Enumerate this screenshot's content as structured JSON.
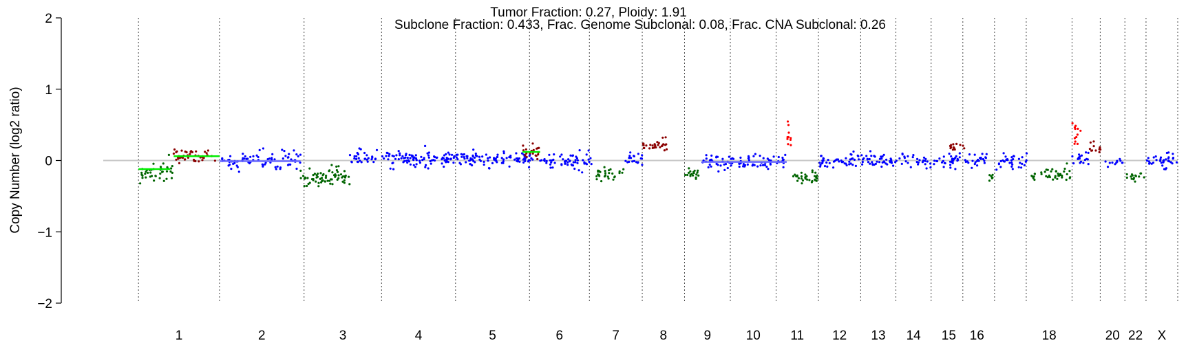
{
  "chart_data": {
    "type": "scatter",
    "title": "Tumor Fraction: 0.27, Ploidy: 1.91",
    "subtitle": "Subclone Fraction: 0.433, Frac. Genome Subclonal: 0.08, Frac. CNA Subclonal: 0.26",
    "xlabel": "",
    "ylabel": "Copy Number (log2 ratio)",
    "ylim": [
      -2,
      2
    ],
    "yticks": [
      "2",
      "1",
      "0",
      "−1",
      "−2"
    ],
    "xlim": [
      0,
      30.5
    ],
    "reference_line": 0,
    "grid": "dotted vertical chromosome boundaries",
    "colors": {
      "neutral": "#0000ff",
      "loss": "#006400",
      "gain": "#8b0000",
      "amplification": "#ff0000",
      "segment_loss": "#00ee00",
      "segment_neutral": "#6b6bff",
      "reference": "#c8c8c8"
    },
    "chromosome_boundaries": [
      1.0,
      3.3,
      5.7,
      7.9,
      10.0,
      12.1,
      13.8,
      15.3,
      16.5,
      17.8,
      19.1,
      20.3,
      21.5,
      22.5,
      23.5,
      24.4,
      25.3,
      26.2,
      27.5,
      28.3,
      29.0,
      29.6,
      30.5
    ],
    "chromosome_labels": [
      {
        "label": "1",
        "x": 2.15
      },
      {
        "label": "2",
        "x": 4.5
      },
      {
        "label": "3",
        "x": 6.8
      },
      {
        "label": "4",
        "x": 8.95
      },
      {
        "label": "5",
        "x": 11.05
      },
      {
        "label": "6",
        "x": 12.95
      },
      {
        "label": "7",
        "x": 14.55
      },
      {
        "label": "8",
        "x": 15.9
      },
      {
        "label": "9",
        "x": 17.15
      },
      {
        "label": "10",
        "x": 18.45
      },
      {
        "label": "11",
        "x": 19.7
      },
      {
        "label": "12",
        "x": 20.9
      },
      {
        "label": "13",
        "x": 22.0
      },
      {
        "label": "14",
        "x": 23.0
      },
      {
        "label": "15",
        "x": 24.0
      },
      {
        "label": "16",
        "x": 24.8
      },
      {
        "label": "18",
        "x": 26.85
      },
      {
        "label": "20",
        "x": 28.65
      },
      {
        "label": "22",
        "x": 29.3
      },
      {
        "label": "X",
        "x": 30.05
      }
    ],
    "series": [
      {
        "category": "loss",
        "segments": [
          {
            "x": [
              1.0,
              2.0
            ],
            "mean": -0.16,
            "sd": 0.08,
            "n": 40
          },
          {
            "x": [
              5.6,
              6.3
            ],
            "mean": -0.26,
            "sd": 0.06,
            "n": 35
          },
          {
            "x": [
              6.3,
              7.0
            ],
            "mean": -0.22,
            "sd": 0.06,
            "n": 35
          },
          {
            "x": [
              14.0,
              14.8
            ],
            "mean": -0.2,
            "sd": 0.05,
            "n": 30
          },
          {
            "x": [
              16.5,
              16.95
            ],
            "mean": -0.2,
            "sd": 0.05,
            "n": 18
          },
          {
            "x": [
              19.55,
              20.3
            ],
            "mean": -0.23,
            "sd": 0.05,
            "n": 32
          },
          {
            "x": [
              25.15,
              25.3
            ],
            "mean": -0.23,
            "sd": 0.04,
            "n": 6
          },
          {
            "x": [
              26.3,
              27.45
            ],
            "mean": -0.2,
            "sd": 0.06,
            "n": 40
          },
          {
            "x": [
              29.02,
              29.55
            ],
            "mean": -0.22,
            "sd": 0.03,
            "n": 15
          }
        ]
      },
      {
        "category": "neutral",
        "segments": [
          {
            "x": [
              3.3,
              5.6
            ],
            "mean": 0.0,
            "sd": 0.06,
            "n": 80
          },
          {
            "x": [
              7.0,
              12.3
            ],
            "mean": 0.02,
            "sd": 0.055,
            "n": 220
          },
          {
            "x": [
              12.4,
              13.95
            ],
            "mean": -0.02,
            "sd": 0.055,
            "n": 60
          },
          {
            "x": [
              14.8,
              15.3
            ],
            "mean": 0.0,
            "sd": 0.05,
            "n": 20
          },
          {
            "x": [
              17.0,
              19.4
            ],
            "mean": -0.02,
            "sd": 0.05,
            "n": 90
          },
          {
            "x": [
              20.3,
              24.35
            ],
            "mean": -0.01,
            "sd": 0.05,
            "n": 150
          },
          {
            "x": [
              24.45,
              25.1
            ],
            "mean": 0.0,
            "sd": 0.05,
            "n": 25
          },
          {
            "x": [
              25.35,
              26.25
            ],
            "mean": 0.0,
            "sd": 0.05,
            "n": 35
          },
          {
            "x": [
              27.5,
              28.0
            ],
            "mean": 0.02,
            "sd": 0.05,
            "n": 18
          },
          {
            "x": [
              28.4,
              28.95
            ],
            "mean": -0.03,
            "sd": 0.03,
            "n": 12
          },
          {
            "x": [
              29.6,
              30.48
            ],
            "mean": 0.0,
            "sd": 0.05,
            "n": 35
          }
        ]
      },
      {
        "category": "gain",
        "segments": [
          {
            "x": [
              2.0,
              3.3
            ],
            "mean": 0.06,
            "sd": 0.05,
            "n": 45
          },
          {
            "x": [
              11.9,
              12.4
            ],
            "mean": 0.12,
            "sd": 0.06,
            "n": 20
          },
          {
            "x": [
              15.3,
              16.0
            ],
            "mean": 0.2,
            "sd": 0.05,
            "n": 28
          },
          {
            "x": [
              24.0,
              24.45
            ],
            "mean": 0.2,
            "sd": 0.03,
            "n": 14
          },
          {
            "x": [
              28.0,
              28.35
            ],
            "mean": 0.18,
            "sd": 0.04,
            "n": 12
          }
        ]
      },
      {
        "category": "amplification",
        "segments": [
          {
            "x": [
              19.4,
              19.55
            ],
            "mean": 0.42,
            "sd": 0.11,
            "n": 10
          },
          {
            "x": [
              27.5,
              27.75
            ],
            "mean": 0.35,
            "sd": 0.11,
            "n": 12
          }
        ]
      }
    ],
    "segment_lines": [
      {
        "x": [
          1.0,
          1.9
        ],
        "y": -0.12,
        "color_key": "segment_loss"
      },
      {
        "x": [
          2.0,
          3.3
        ],
        "y": 0.06,
        "color_key": "segment_loss"
      },
      {
        "x": [
          11.9,
          12.4
        ],
        "y": 0.12,
        "color_key": "segment_loss"
      },
      {
        "x": [
          3.3,
          5.6
        ],
        "y": -0.01,
        "color_key": "segment_neutral"
      },
      {
        "x": [
          17.0,
          19.4
        ],
        "y": -0.02,
        "color_key": "segment_neutral"
      }
    ]
  }
}
